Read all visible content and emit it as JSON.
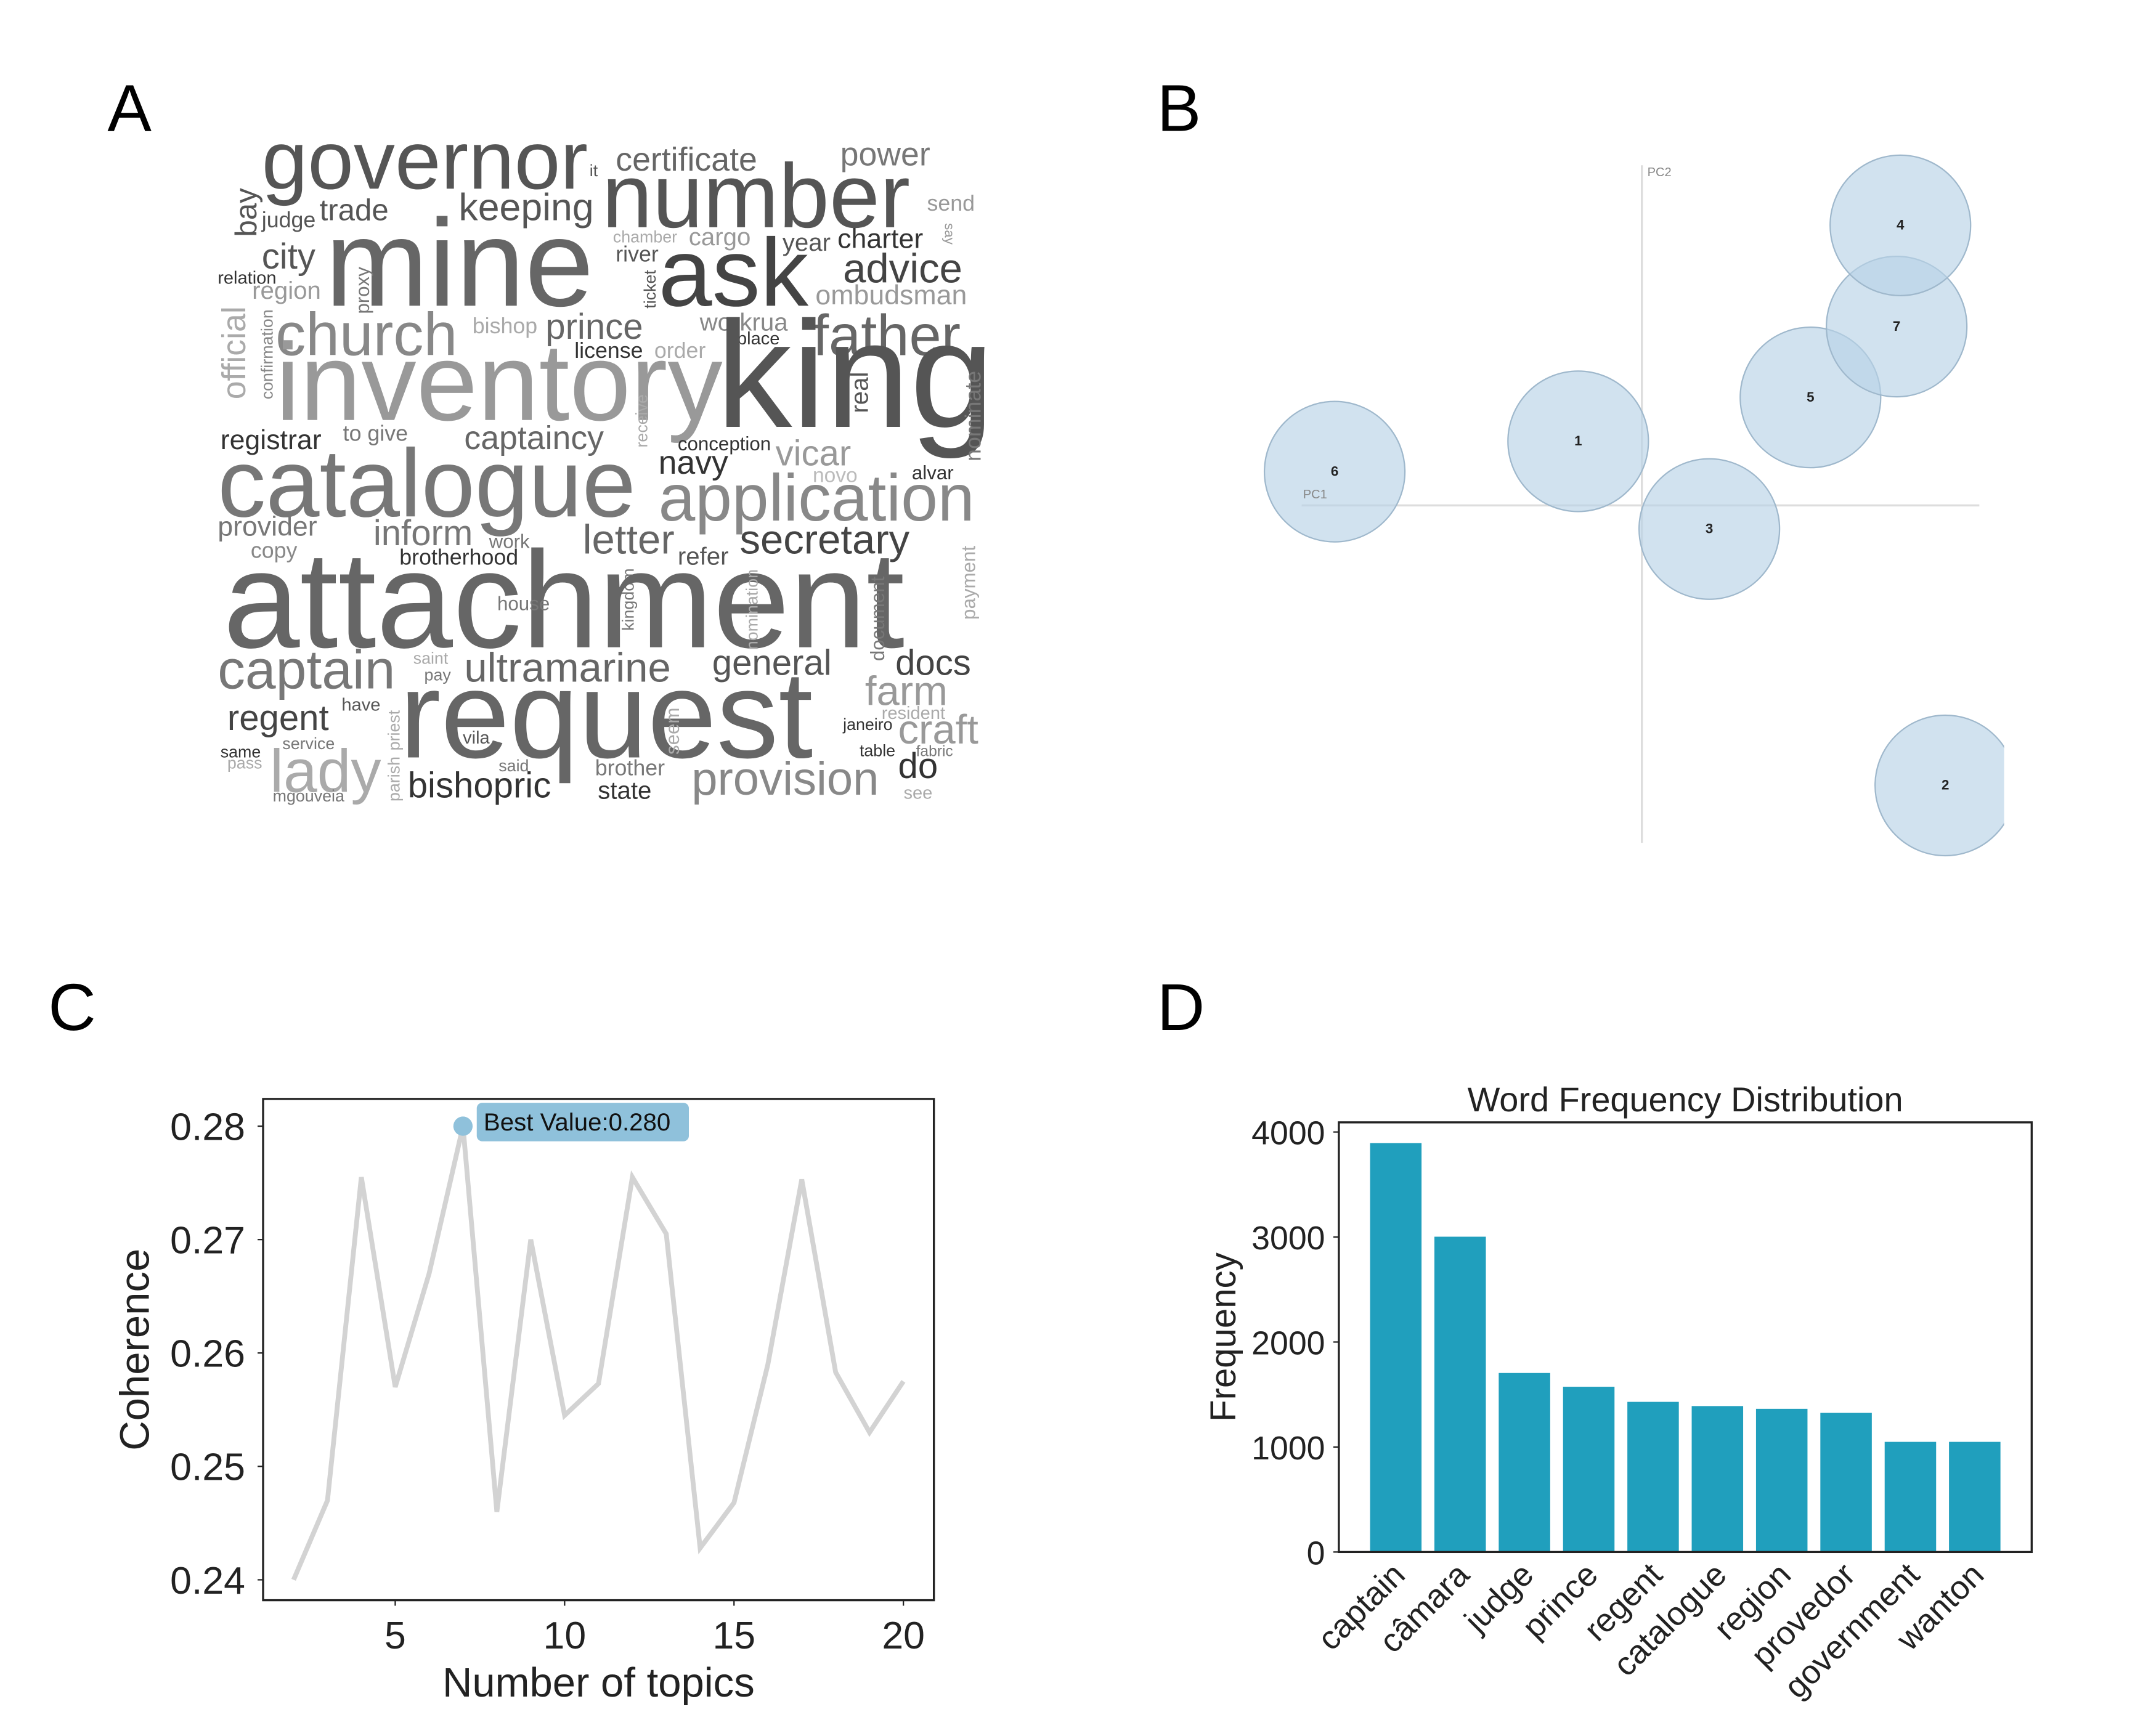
{
  "chart_data": [
    {
      "type": "wordcloud",
      "panel": "A",
      "words": [
        "governor",
        "certificate",
        "power",
        "it",
        "number",
        "bay",
        "judge",
        "trade",
        "keeping",
        "send",
        "mine",
        "ask",
        "chamber",
        "cargo",
        "year",
        "charter",
        "say",
        "city",
        "river",
        "advice",
        "relation",
        "region",
        "proxy",
        "ticket",
        "ombudsman",
        "church",
        "official",
        "bishop",
        "prince",
        "workrua",
        "father",
        "confirmation",
        "place",
        "license",
        "order",
        "inventory",
        "king",
        "real",
        "nominate",
        "registrar",
        "to give",
        "captaincy",
        "receive",
        "conception",
        "vicar",
        "navy",
        "catalogue",
        "novo",
        "alvar",
        "application",
        "provider",
        "inform",
        "letter",
        "secretary",
        "copy",
        "work",
        "brotherhood",
        "refer",
        "payment",
        "kingdom",
        "attachment",
        "house",
        "nomination",
        "document",
        "captain",
        "saint",
        "ultramarine",
        "general",
        "docs",
        "pay",
        "farm",
        "request",
        "regent",
        "have",
        "resident",
        "priest",
        "seem",
        "janeiro",
        "craft",
        "service",
        "vila",
        "table",
        "fabric",
        "same",
        "parish",
        "pass",
        "lady",
        "said",
        "brother",
        "do",
        "bishopric",
        "state",
        "provision",
        "mgouveia",
        "see"
      ]
    },
    {
      "type": "bubble",
      "panel": "B",
      "x_label": "PC1",
      "y_label": "PC2",
      "labels": [
        "6",
        "1",
        "3",
        "5",
        "7",
        "4",
        "2"
      ],
      "x": [
        -0.82,
        -0.17,
        0.18,
        0.45,
        0.68,
        0.69,
        0.81
      ],
      "y": [
        0.1,
        0.19,
        -0.07,
        0.32,
        0.53,
        0.83,
        -0.83
      ],
      "xlim": [
        -1,
        1
      ],
      "ylim": [
        -1,
        1
      ],
      "color": "#b9d3e6"
    },
    {
      "type": "line",
      "panel": "C",
      "x_label": "Number of topics",
      "y_label": "Coherence",
      "x": [
        2,
        3,
        4,
        5,
        6,
        7,
        8,
        9,
        10,
        11,
        12,
        13,
        14,
        15,
        16,
        17,
        18,
        19,
        20
      ],
      "values": [
        0.24,
        0.247,
        0.2755,
        0.257,
        0.267,
        0.28,
        0.246,
        0.27,
        0.2545,
        0.2573,
        0.2755,
        0.2705,
        0.2428,
        0.2468,
        0.259,
        0.2753,
        0.2583,
        0.253,
        0.2575
      ],
      "color": "#d3d3d3",
      "annotation": {
        "text": "Best Value:0.280",
        "x": 7,
        "y": 0.28,
        "color": "#8fc1db"
      },
      "xlim": [
        1.1,
        20.9
      ],
      "ylim": [
        0.2382,
        0.2824
      ],
      "xticks": [
        5,
        10,
        15,
        20
      ],
      "yticks": [
        0.24,
        0.25,
        0.26,
        0.27,
        0.28
      ]
    },
    {
      "type": "bar",
      "panel": "D",
      "title": "Word Frequency Distribution",
      "y_label": "Frequency",
      "categories": [
        "captain",
        "câmara",
        "judge",
        "prince",
        "regent",
        "catalogue",
        "region",
        "provedor",
        "government",
        "wanton"
      ],
      "values": [
        3895,
        3003,
        1705,
        1574,
        1430,
        1390,
        1364,
        1325,
        1049,
        1049
      ],
      "color": "#209fbd",
      "ylim": [
        0,
        4092
      ],
      "yticks": [
        0,
        1000,
        2000,
        3000,
        4000
      ]
    }
  ]
}
